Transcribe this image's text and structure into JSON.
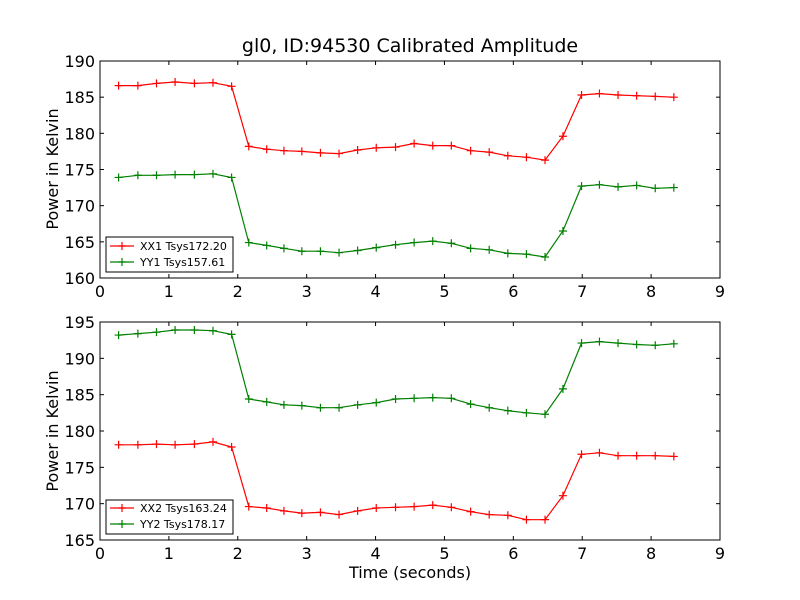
{
  "chart_data": [
    {
      "type": "line",
      "title": "gl0, ID:94530 Calibrated Amplitude",
      "xlabel": "",
      "ylabel": "Power in Kelvin",
      "xlim": [
        0,
        9
      ],
      "ylim": [
        160,
        190
      ],
      "x_ticks": [
        0,
        1,
        2,
        3,
        4,
        5,
        6,
        7,
        8,
        9
      ],
      "y_ticks": [
        160,
        165,
        170,
        175,
        180,
        185,
        190
      ],
      "grid": false,
      "legend_position": "lower-left",
      "x": [
        0.27,
        0.55,
        0.82,
        1.09,
        1.37,
        1.64,
        1.91,
        2.16,
        2.42,
        2.67,
        2.93,
        3.2,
        3.47,
        3.74,
        4.01,
        4.29,
        4.56,
        4.83,
        5.1,
        5.38,
        5.65,
        5.92,
        6.19,
        6.46,
        6.72,
        6.99,
        7.25,
        7.52,
        7.79,
        8.06,
        8.33
      ],
      "series": [
        {
          "name": "XX1 Tsys172.20",
          "color": "#ff0000",
          "values": [
            186.6,
            186.6,
            186.9,
            187.1,
            186.9,
            187.0,
            186.5,
            178.2,
            177.8,
            177.6,
            177.5,
            177.3,
            177.2,
            177.7,
            178.0,
            178.1,
            178.6,
            178.3,
            178.3,
            177.6,
            177.4,
            176.9,
            176.7,
            176.3,
            179.6,
            185.3,
            185.5,
            185.3,
            185.2,
            185.1,
            185.0
          ]
        },
        {
          "name": "YY1 Tsys157.61",
          "color": "#008000",
          "values": [
            173.9,
            174.2,
            174.2,
            174.3,
            174.3,
            174.4,
            173.9,
            164.9,
            164.5,
            164.1,
            163.7,
            163.7,
            163.5,
            163.8,
            164.2,
            164.6,
            164.9,
            165.1,
            164.8,
            164.1,
            163.9,
            163.4,
            163.3,
            162.9,
            166.5,
            172.7,
            172.9,
            172.6,
            172.8,
            172.4,
            172.5
          ]
        }
      ]
    },
    {
      "type": "line",
      "title": "",
      "xlabel": "Time (seconds)",
      "ylabel": "Power in Kelvin",
      "xlim": [
        0,
        9
      ],
      "ylim": [
        165,
        195
      ],
      "x_ticks": [
        0,
        1,
        2,
        3,
        4,
        5,
        6,
        7,
        8,
        9
      ],
      "y_ticks": [
        165,
        170,
        175,
        180,
        185,
        190,
        195
      ],
      "grid": false,
      "legend_position": "lower-left",
      "x": [
        0.27,
        0.55,
        0.82,
        1.09,
        1.37,
        1.64,
        1.91,
        2.16,
        2.42,
        2.67,
        2.93,
        3.2,
        3.47,
        3.74,
        4.01,
        4.29,
        4.56,
        4.83,
        5.1,
        5.38,
        5.65,
        5.92,
        6.19,
        6.46,
        6.72,
        6.99,
        7.25,
        7.52,
        7.79,
        8.06,
        8.33
      ],
      "series": [
        {
          "name": "XX2 Tsys163.24",
          "color": "#ff0000",
          "values": [
            178.1,
            178.1,
            178.2,
            178.1,
            178.2,
            178.5,
            177.8,
            169.6,
            169.4,
            169.0,
            168.7,
            168.8,
            168.5,
            169.0,
            169.4,
            169.5,
            169.6,
            169.8,
            169.5,
            168.9,
            168.5,
            168.4,
            167.8,
            167.8,
            171.1,
            176.8,
            177.0,
            176.6,
            176.6,
            176.6,
            176.5
          ]
        },
        {
          "name": "YY2 Tsys178.17",
          "color": "#008000",
          "values": [
            193.2,
            193.4,
            193.6,
            193.9,
            193.9,
            193.8,
            193.3,
            184.4,
            184.0,
            183.6,
            183.5,
            183.2,
            183.2,
            183.6,
            183.9,
            184.4,
            184.5,
            184.6,
            184.5,
            183.7,
            183.2,
            182.8,
            182.5,
            182.3,
            185.8,
            192.1,
            192.3,
            192.1,
            191.9,
            191.8,
            192.0
          ]
        }
      ]
    }
  ]
}
